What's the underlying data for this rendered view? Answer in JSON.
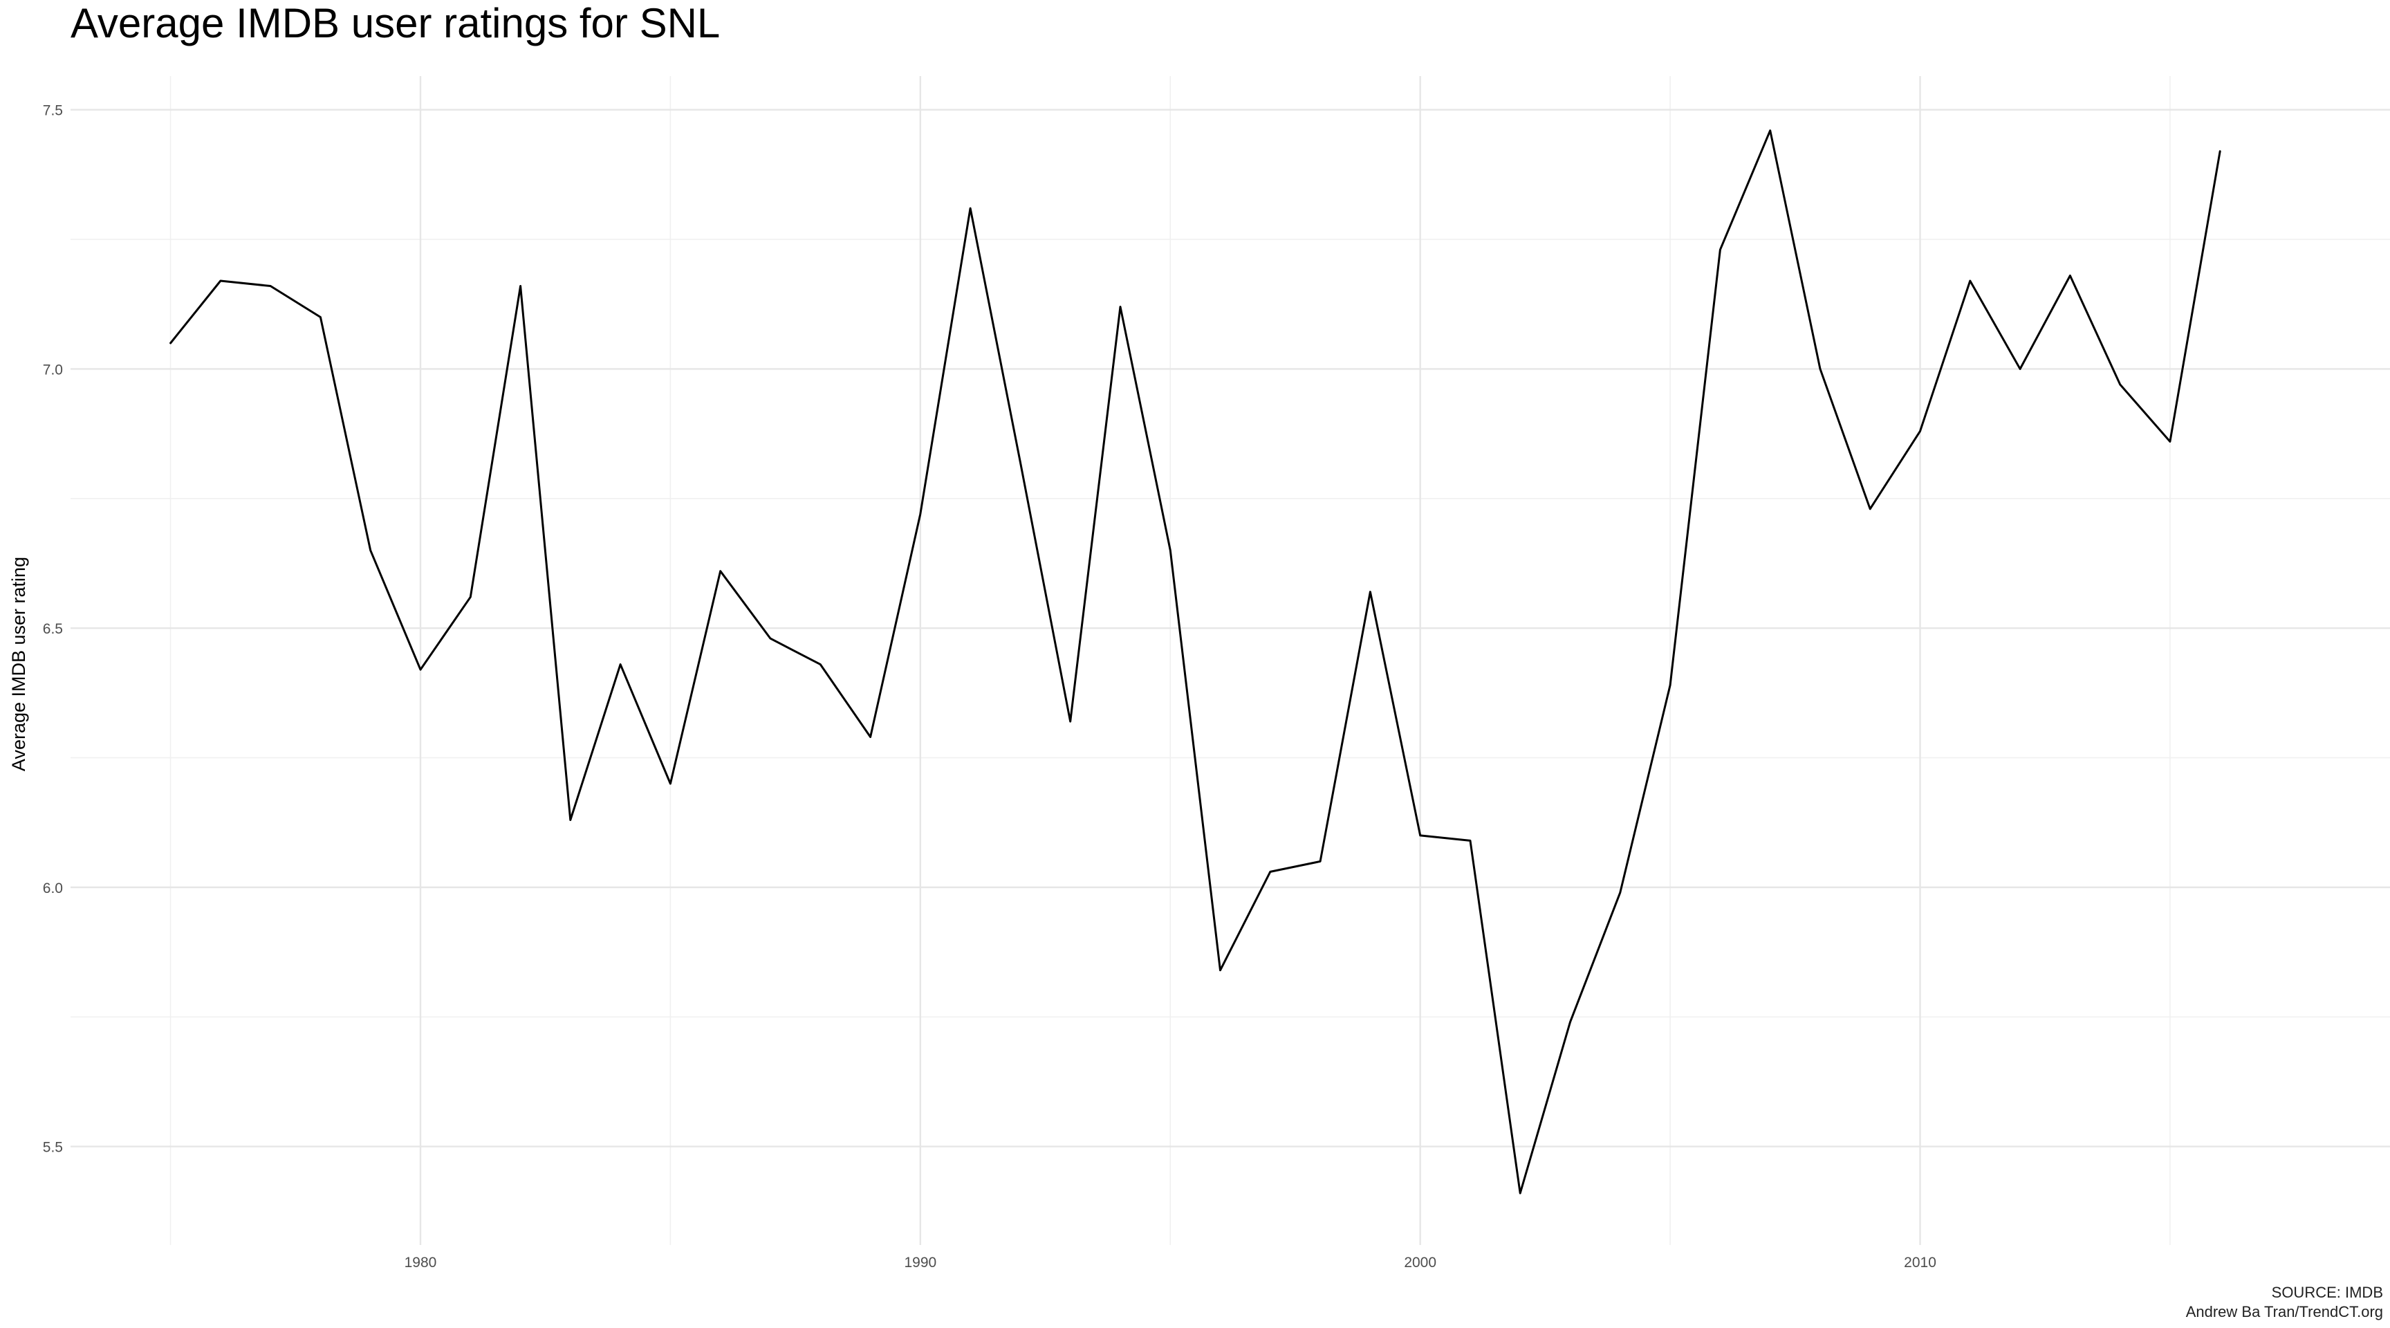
{
  "chart_data": {
    "type": "line",
    "title": "Average IMDB user ratings for SNL",
    "xlabel": "",
    "ylabel": "Average IMDB user rating",
    "xlim": [
      1973.0,
      2019.4
    ],
    "ylim": [
      5.31,
      7.565
    ],
    "x_ticks": [
      1980,
      1990,
      2000,
      2010
    ],
    "x_tick_labels": [
      "1980",
      "1990",
      "2000",
      "2010"
    ],
    "x_minor_ticks": [
      1975,
      1985,
      1995,
      2005,
      2015
    ],
    "y_ticks": [
      5.5,
      6.0,
      6.5,
      7.0,
      7.5
    ],
    "y_tick_labels": [
      "5.5",
      "6.0",
      "6.5",
      "7.0",
      "7.5"
    ],
    "y_minor_ticks": [
      5.75,
      6.25,
      6.75,
      7.25
    ],
    "grid": true,
    "series": [
      {
        "color": "#000000",
        "x": [
          1975,
          1976,
          1977,
          1978,
          1979,
          1980,
          1981,
          1982,
          1983,
          1984,
          1985,
          1986,
          1987,
          1988,
          1989,
          1990,
          1991,
          1992,
          1993,
          1994,
          1995,
          1996,
          1997,
          1998,
          1999,
          2000,
          2001,
          2002,
          2003,
          2004,
          2005,
          2006,
          2007,
          2008,
          2009,
          2010,
          2011,
          2012,
          2013,
          2014,
          2015,
          2016
        ],
        "values": [
          7.05,
          7.17,
          7.16,
          7.1,
          6.65,
          6.42,
          6.56,
          7.16,
          6.13,
          6.43,
          6.2,
          6.61,
          6.48,
          6.43,
          6.29,
          6.72,
          7.31,
          6.82,
          6.32,
          7.12,
          6.65,
          5.84,
          6.03,
          6.05,
          6.57,
          6.1,
          6.09,
          5.41,
          5.74,
          5.99,
          6.39,
          7.23,
          7.46,
          7.0,
          6.73,
          6.88,
          7.17,
          7.0,
          7.18,
          6.97,
          6.86,
          7.42
        ]
      }
    ]
  },
  "caption": {
    "source": "SOURCE: IMDB",
    "credit": "Andrew Ba Tran/TrendCT.org"
  }
}
